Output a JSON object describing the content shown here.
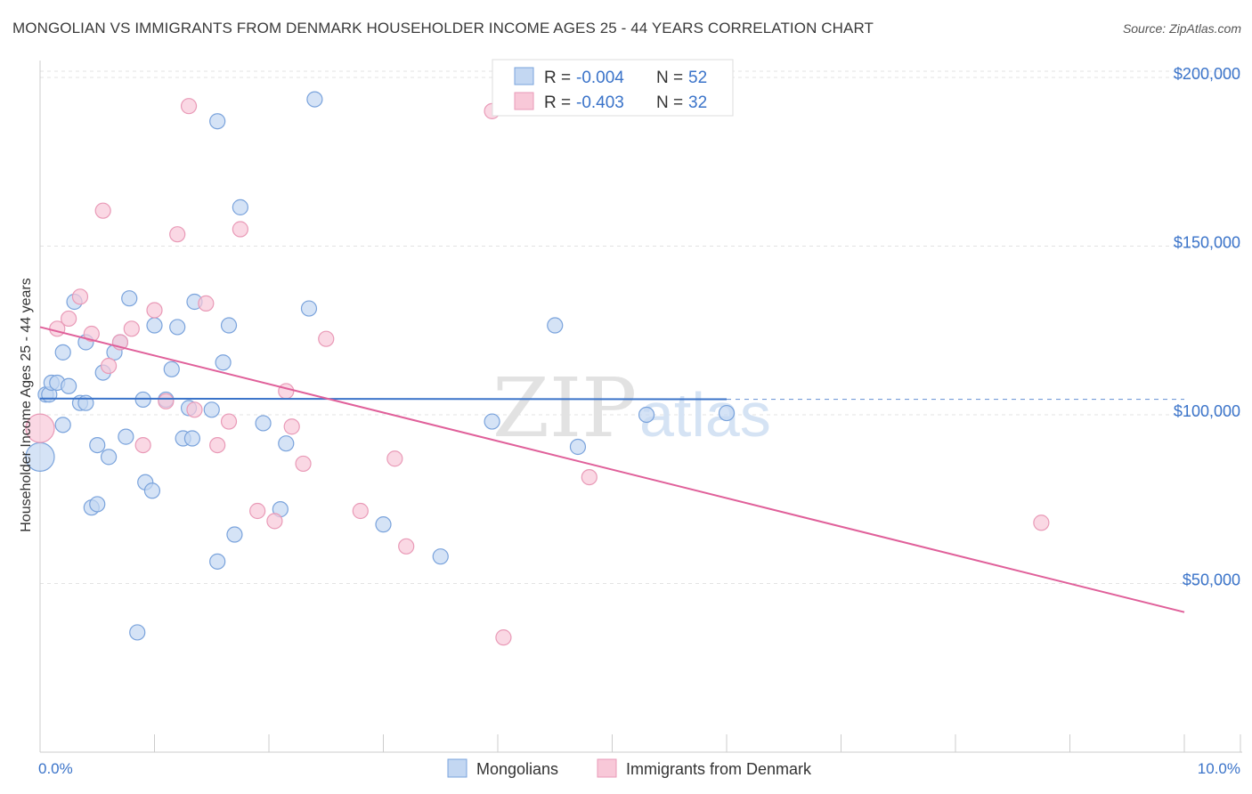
{
  "title": "MONGOLIAN VS IMMIGRANTS FROM DENMARK HOUSEHOLDER INCOME AGES 25 - 44 YEARS CORRELATION CHART",
  "source": "Source: ZipAtlas.com",
  "watermark": {
    "zip": "ZIP",
    "atlas": "atlas"
  },
  "colors": {
    "blue": "#3a73c9",
    "blue_fill": "#c3d7f2",
    "pink": "#e0609a",
    "pink_fill": "#f8c8d8",
    "grid": "#e3e3e3"
  },
  "legend": {
    "r_label": "R =",
    "n_label": "N =",
    "entries": [
      {
        "r": "-0.004",
        "n": "52"
      },
      {
        "r": "-0.403",
        "n": "32"
      }
    ]
  },
  "chart_data": {
    "type": "scatter",
    "title": "MONGOLIAN VS IMMIGRANTS FROM DENMARK HOUSEHOLDER INCOME AGES 25 - 44 YEARS CORRELATION CHART",
    "xlabel": "",
    "ylabel": "Householder Income Ages 25 - 44 years",
    "xlim": [
      0,
      10
    ],
    "ylim": [
      0,
      205000
    ],
    "x_tick_labels": [
      "0.0%",
      "10.0%"
    ],
    "y_ticks": [
      50000,
      100000,
      150000,
      200000
    ],
    "y_tick_labels": [
      "$50,000",
      "$100,000",
      "$150,000",
      "$200,000"
    ],
    "grid": true,
    "legend_position": "top-center",
    "series": [
      {
        "name": "Mongolians",
        "color": "#3a73c9",
        "trend": {
          "x": [
            0,
            6.0
          ],
          "y": [
            104800,
            104600
          ],
          "dashed_extension_to": 10
        },
        "points": [
          [
            0.0,
            87500
          ],
          [
            0.05,
            106000
          ],
          [
            0.08,
            106000
          ],
          [
            0.1,
            109500
          ],
          [
            0.15,
            109500
          ],
          [
            0.2,
            97000
          ],
          [
            0.25,
            108500
          ],
          [
            0.2,
            118500
          ],
          [
            0.3,
            133500
          ],
          [
            0.35,
            103500
          ],
          [
            0.4,
            103500
          ],
          [
            0.4,
            121500
          ],
          [
            0.45,
            72500
          ],
          [
            0.5,
            91000
          ],
          [
            0.55,
            112500
          ],
          [
            0.6,
            87500
          ],
          [
            0.65,
            118500
          ],
          [
            0.7,
            121500
          ],
          [
            0.5,
            73500
          ],
          [
            0.75,
            93500
          ],
          [
            0.78,
            134500
          ],
          [
            0.85,
            35500
          ],
          [
            0.9,
            104500
          ],
          [
            0.92,
            80000
          ],
          [
            0.98,
            77500
          ],
          [
            1.0,
            126500
          ],
          [
            1.1,
            104500
          ],
          [
            1.15,
            113500
          ],
          [
            1.2,
            126000
          ],
          [
            1.25,
            93000
          ],
          [
            1.3,
            102000
          ],
          [
            1.33,
            93000
          ],
          [
            1.35,
            133500
          ],
          [
            1.5,
            101500
          ],
          [
            1.55,
            56500
          ],
          [
            1.6,
            115500
          ],
          [
            1.65,
            126500
          ],
          [
            1.7,
            64500
          ],
          [
            1.75,
            161500
          ],
          [
            1.55,
            187000
          ],
          [
            1.95,
            97500
          ],
          [
            2.1,
            72000
          ],
          [
            2.15,
            91500
          ],
          [
            2.35,
            131500
          ],
          [
            2.4,
            193500
          ],
          [
            3.0,
            67500
          ],
          [
            3.5,
            58000
          ],
          [
            3.95,
            98000
          ],
          [
            4.5,
            126500
          ],
          [
            4.7,
            90500
          ],
          [
            5.3,
            100000
          ],
          [
            6.0,
            100500
          ]
        ]
      },
      {
        "name": "Immigrants from Denmark",
        "color": "#e0609a",
        "trend": {
          "x": [
            0,
            10
          ],
          "y": [
            126000,
            41500
          ]
        },
        "points": [
          [
            0.0,
            96000
          ],
          [
            0.15,
            125500
          ],
          [
            0.25,
            128500
          ],
          [
            0.35,
            135000
          ],
          [
            0.45,
            124000
          ],
          [
            0.55,
            160500
          ],
          [
            0.6,
            114500
          ],
          [
            0.7,
            121500
          ],
          [
            0.8,
            125500
          ],
          [
            0.9,
            91000
          ],
          [
            1.0,
            131000
          ],
          [
            1.1,
            104000
          ],
          [
            1.2,
            153500
          ],
          [
            1.3,
            191500
          ],
          [
            1.35,
            101500
          ],
          [
            1.45,
            133000
          ],
          [
            1.55,
            91000
          ],
          [
            1.65,
            98000
          ],
          [
            1.75,
            155000
          ],
          [
            1.9,
            71500
          ],
          [
            2.05,
            68500
          ],
          [
            2.15,
            107000
          ],
          [
            2.2,
            96500
          ],
          [
            2.3,
            85500
          ],
          [
            2.5,
            122500
          ],
          [
            2.8,
            71500
          ],
          [
            3.1,
            87000
          ],
          [
            3.2,
            61000
          ],
          [
            3.95,
            190000
          ],
          [
            4.05,
            34000
          ],
          [
            4.8,
            81500
          ],
          [
            8.75,
            68000
          ]
        ]
      }
    ]
  }
}
